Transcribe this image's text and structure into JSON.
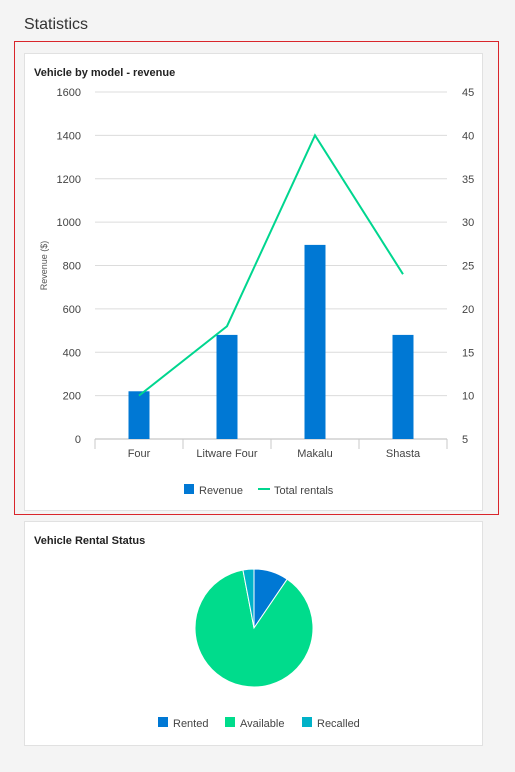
{
  "page": {
    "title": "Statistics"
  },
  "charts": {
    "revenue": {
      "title": "Vehicle by model - revenue"
    },
    "status": {
      "title": "Vehicle Rental Status"
    }
  },
  "colors": {
    "revenue": "#0078d4",
    "rentals": "#00d68f",
    "rented": "#0078d4",
    "available": "#00dc8c",
    "recalled": "#00b2c8"
  },
  "chart_data": [
    {
      "type": "bar",
      "title": "Vehicle by model - revenue",
      "categories": [
        "Four",
        "Litware Four",
        "Makalu",
        "Shasta"
      ],
      "ylabel": "Revenue ($)",
      "ylim": [
        0,
        1600
      ],
      "yticks": [
        "0",
        "200",
        "400",
        "600",
        "800",
        "1000",
        "1200",
        "1400",
        "1600"
      ],
      "y2lim": [
        5,
        45
      ],
      "y2ticks": [
        "5",
        "10",
        "15",
        "20",
        "25",
        "30",
        "35",
        "40",
        "45"
      ],
      "series": [
        {
          "name": "Revenue",
          "type": "bar",
          "axis": "left",
          "values": [
            220,
            480,
            895,
            480
          ]
        },
        {
          "name": "Total rentals",
          "type": "line",
          "axis": "right",
          "values": [
            10,
            18,
            40,
            24
          ]
        }
      ],
      "grid": true,
      "legend_position": "bottom"
    },
    {
      "type": "pie",
      "title": "Vehicle Rental Status",
      "labels": [
        "Rented",
        "Available",
        "Recalled"
      ],
      "values": [
        9.5,
        87.5,
        3
      ],
      "legend_position": "bottom"
    }
  ]
}
